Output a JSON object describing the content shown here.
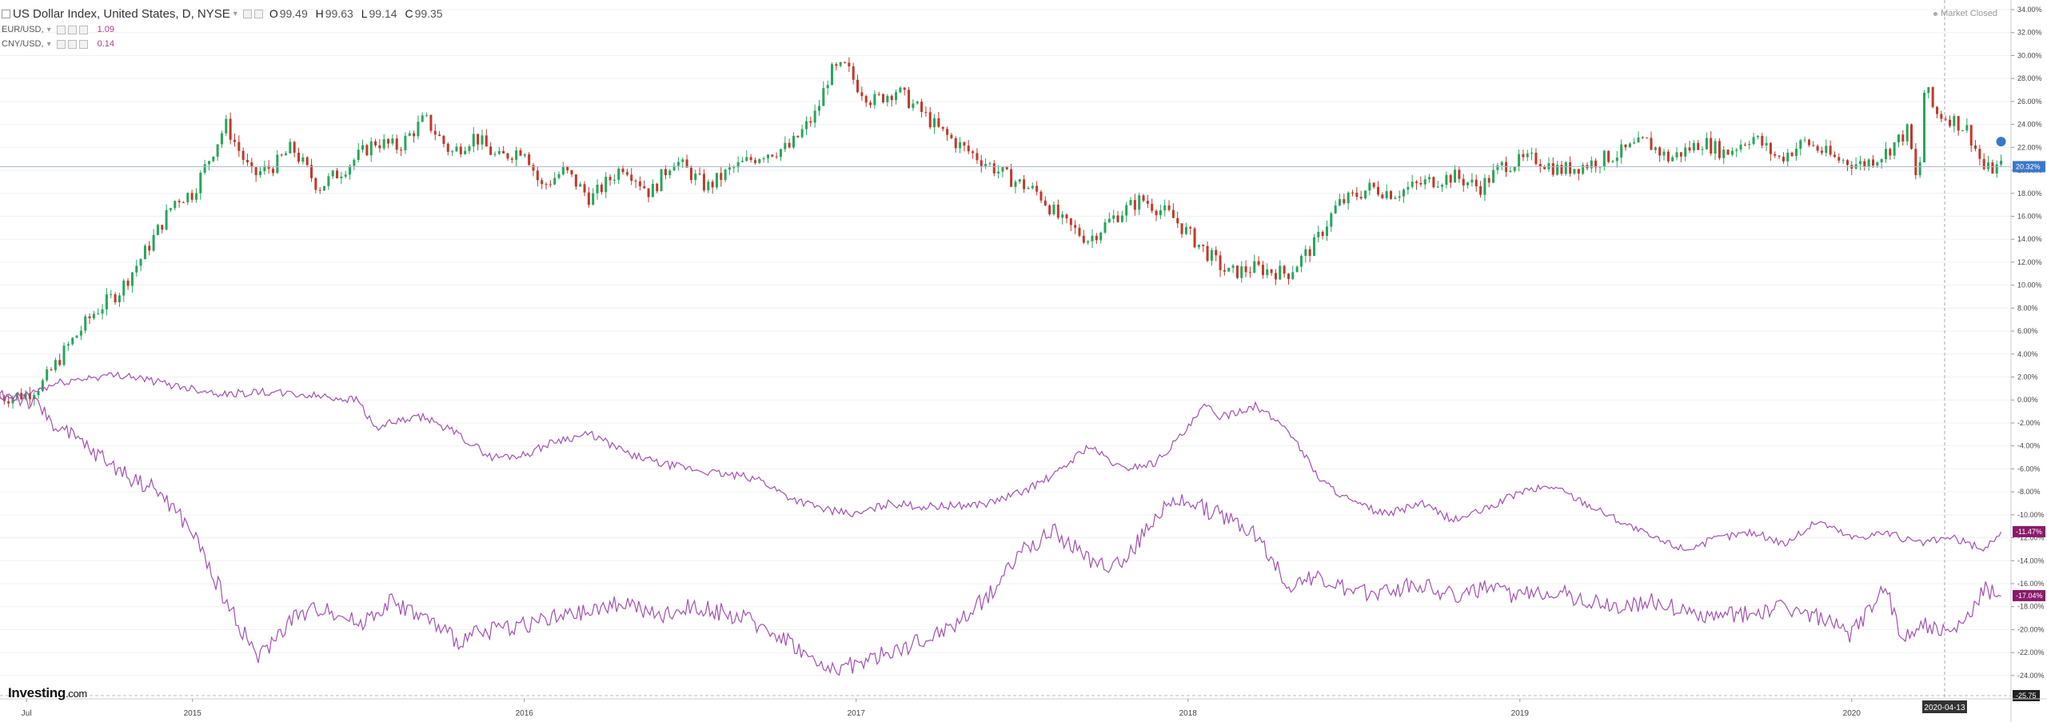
{
  "header": {
    "title": "US Dollar Index, United States, D, NYSE",
    "ohlc": {
      "o_label": "O",
      "o": "99.49",
      "h_label": "H",
      "h": "99.63",
      "l_label": "L",
      "l": "99.14",
      "c_label": "C",
      "c": "99.35"
    },
    "overlays": [
      {
        "name": "EUR/USD,",
        "value": "1.09"
      },
      {
        "name": "CNY/USD,",
        "value": "0.14"
      }
    ],
    "status": "Market Closed"
  },
  "branding": {
    "logo_main": "Investing",
    "logo_suffix": ".com"
  },
  "colors": {
    "bg": "#ffffff",
    "up": "#26a65b",
    "down": "#c0392b",
    "compare_line": "#a050b0",
    "grid": "#f0f0f0",
    "crosshair": "#aaaaaa",
    "price_label_usd": "#3b78c8",
    "price_label_compare": "#8b1a6b",
    "axis_label_dark": "#222222"
  },
  "chart_data": {
    "type": "line",
    "title": "US Dollar Index, United States, D, NYSE",
    "percent_scale": true,
    "ylim": [
      -25.75,
      34
    ],
    "y_ticks": [
      "34.00%",
      "32.00%",
      "30.00%",
      "28.00%",
      "26.00%",
      "24.00%",
      "22.00%",
      "20.00%",
      "18.00%",
      "16.00%",
      "14.00%",
      "12.00%",
      "10.00%",
      "8.00%",
      "6.00%",
      "4.00%",
      "2.00%",
      "0.00%",
      "-2.00%",
      "-4.00%",
      "-6.00%",
      "-8.00%",
      "-10.00%",
      "-12.00%",
      "-14.00%",
      "-16.00%",
      "-18.00%",
      "-20.00%",
      "-22.00%",
      "-24.00%"
    ],
    "y_tick_values": [
      34,
      32,
      30,
      28,
      26,
      24,
      22,
      20,
      18,
      16,
      14,
      12,
      10,
      8,
      6,
      4,
      2,
      0,
      -2,
      -4,
      -6,
      -8,
      -10,
      -12,
      -14,
      -16,
      -18,
      -20,
      -22,
      -24
    ],
    "x_ticks": [
      "Jul",
      "2015",
      "2016",
      "2017",
      "2018",
      "2019",
      "2020"
    ],
    "x_tick_values": [
      2014.5,
      2015.0,
      2016.0,
      2017.0,
      2018.0,
      2019.0,
      2020.0
    ],
    "xlim": [
      2014.42,
      2020.48
    ],
    "bottom_label": "-25.75",
    "crosshair_date": "2020-04-13",
    "crosshair_x": 2020.28,
    "last_labels": [
      {
        "series": "US Dollar Index",
        "text": "20.32%",
        "value": 20.32
      },
      {
        "series": "EUR/USD",
        "text": "-11.47%",
        "value": -11.47
      },
      {
        "series": "CNY/USD",
        "text": "-17.04%",
        "value": -17.04
      }
    ],
    "series": [
      {
        "name": "US Dollar Index",
        "style": "candles",
        "x": [
          2014.42,
          2014.5,
          2014.55,
          2014.62,
          2014.7,
          2014.78,
          2014.86,
          2014.95,
          2015.0,
          2015.1,
          2015.18,
          2015.25,
          2015.3,
          2015.38,
          2015.45,
          2015.55,
          2015.62,
          2015.7,
          2015.78,
          2015.85,
          2015.92,
          2016.0,
          2016.05,
          2016.12,
          2016.2,
          2016.3,
          2016.38,
          2016.45,
          2016.55,
          2016.62,
          2016.72,
          2016.8,
          2016.88,
          2016.92,
          2016.97,
          2017.0,
          2017.05,
          2017.12,
          2017.2,
          2017.25,
          2017.32,
          2017.4,
          2017.45,
          2017.55,
          2017.62,
          2017.7,
          2017.78,
          2017.86,
          2017.95,
          2018.0,
          2018.05,
          2018.12,
          2018.2,
          2018.3,
          2018.38,
          2018.45,
          2018.55,
          2018.62,
          2018.72,
          2018.8,
          2018.88,
          2018.95,
          2019.05,
          2019.12,
          2019.2,
          2019.3,
          2019.38,
          2019.45,
          2019.55,
          2019.62,
          2019.7,
          2019.78,
          2019.86,
          2019.95,
          2020.03,
          2020.1,
          2020.17,
          2020.2,
          2020.22,
          2020.25,
          2020.3,
          2020.35,
          2020.4,
          2020.45
        ],
        "y": [
          0.2,
          0.5,
          1.5,
          4.5,
          7.5,
          9.5,
          13.0,
          17.5,
          18.0,
          24.0,
          19.5,
          20.5,
          22.0,
          18.5,
          20.0,
          22.5,
          22.0,
          24.5,
          21.5,
          23.0,
          21.0,
          22.0,
          18.5,
          20.0,
          17.5,
          20.5,
          18.0,
          21.0,
          18.5,
          20.0,
          21.5,
          22.0,
          25.0,
          28.5,
          29.0,
          27.5,
          26.0,
          27.0,
          25.0,
          23.5,
          22.0,
          20.5,
          19.5,
          18.0,
          15.5,
          14.0,
          16.0,
          17.5,
          16.0,
          14.5,
          13.0,
          11.0,
          11.5,
          11.0,
          13.5,
          17.0,
          18.5,
          18.0,
          19.0,
          19.5,
          18.5,
          20.5,
          21.0,
          20.0,
          20.5,
          21.5,
          22.5,
          21.0,
          22.5,
          21.5,
          23.0,
          21.0,
          22.5,
          21.0,
          20.5,
          21.5,
          23.5,
          18.0,
          27.5,
          25.0,
          24.5,
          23.5,
          20.0,
          20.32
        ]
      },
      {
        "name": "EUR/USD",
        "style": "line",
        "x": [
          2014.42,
          2014.5,
          2014.6,
          2014.7,
          2014.8,
          2014.9,
          2015.0,
          2015.1,
          2015.2,
          2015.3,
          2015.4,
          2015.5,
          2015.55,
          2015.6,
          2015.7,
          2015.8,
          2015.9,
          2016.0,
          2016.1,
          2016.2,
          2016.3,
          2016.4,
          2016.5,
          2016.6,
          2016.7,
          2016.8,
          2016.9,
          2017.0,
          2017.1,
          2017.2,
          2017.3,
          2017.4,
          2017.5,
          2017.6,
          2017.7,
          2017.8,
          2017.9,
          2018.0,
          2018.05,
          2018.1,
          2018.2,
          2018.3,
          2018.4,
          2018.5,
          2018.6,
          2018.7,
          2018.8,
          2018.9,
          2019.0,
          2019.1,
          2019.2,
          2019.3,
          2019.4,
          2019.5,
          2019.6,
          2019.7,
          2019.8,
          2019.9,
          2020.0,
          2020.1,
          2020.2,
          2020.3,
          2020.4,
          2020.45
        ],
        "y": [
          0.0,
          0.5,
          1.5,
          2.0,
          2.2,
          1.5,
          1.0,
          0.5,
          0.7,
          0.5,
          0.3,
          0.0,
          -2.5,
          -2.0,
          -1.5,
          -3.0,
          -5.0,
          -4.8,
          -3.5,
          -3.0,
          -4.5,
          -5.5,
          -6.0,
          -6.5,
          -6.8,
          -8.5,
          -9.5,
          -10.0,
          -9.0,
          -9.3,
          -9.2,
          -9.0,
          -8.0,
          -6.5,
          -4.0,
          -6.0,
          -5.5,
          -2.5,
          -0.5,
          -1.5,
          -0.5,
          -2.5,
          -7.0,
          -9.0,
          -10.0,
          -9.0,
          -10.5,
          -9.5,
          -8.0,
          -7.5,
          -9.0,
          -10.5,
          -12.0,
          -13.0,
          -12.0,
          -11.5,
          -12.5,
          -10.5,
          -12.0,
          -11.5,
          -12.5,
          -12.0,
          -13.0,
          -11.47
        ]
      },
      {
        "name": "CNY/USD",
        "style": "line",
        "x": [
          2014.42,
          2014.5,
          2014.55,
          2014.6,
          2014.7,
          2014.8,
          2014.9,
          2015.0,
          2015.05,
          2015.1,
          2015.2,
          2015.3,
          2015.4,
          2015.5,
          2015.6,
          2015.7,
          2015.8,
          2015.9,
          2016.0,
          2016.1,
          2016.2,
          2016.3,
          2016.4,
          2016.5,
          2016.6,
          2016.7,
          2016.8,
          2016.9,
          2017.0,
          2017.1,
          2017.2,
          2017.3,
          2017.4,
          2017.5,
          2017.6,
          2017.7,
          2017.8,
          2017.9,
          2018.0,
          2018.05,
          2018.1,
          2018.2,
          2018.3,
          2018.4,
          2018.5,
          2018.6,
          2018.7,
          2018.8,
          2018.9,
          2019.0,
          2019.1,
          2019.2,
          2019.3,
          2019.4,
          2019.5,
          2019.6,
          2019.7,
          2019.8,
          2019.9,
          2020.0,
          2020.1,
          2020.15,
          2020.2,
          2020.25,
          2020.3,
          2020.35,
          2020.4,
          2020.45
        ],
        "y": [
          0.5,
          0.0,
          -1.0,
          -2.5,
          -4.5,
          -6.5,
          -8.0,
          -11.5,
          -14.5,
          -17.5,
          -22.5,
          -19.0,
          -18.0,
          -19.5,
          -17.5,
          -19.0,
          -21.0,
          -20.0,
          -19.5,
          -19.0,
          -18.5,
          -17.5,
          -19.0,
          -18.0,
          -18.5,
          -19.5,
          -21.0,
          -23.5,
          -23.0,
          -22.0,
          -21.0,
          -19.5,
          -17.0,
          -13.0,
          -11.5,
          -14.0,
          -14.5,
          -10.0,
          -8.5,
          -9.5,
          -10.0,
          -11.5,
          -16.0,
          -15.5,
          -17.0,
          -16.5,
          -16.0,
          -17.0,
          -16.5,
          -17.0,
          -16.5,
          -17.5,
          -18.0,
          -17.5,
          -18.5,
          -19.0,
          -18.5,
          -18.0,
          -19.0,
          -20.5,
          -16.0,
          -21.0,
          -19.5,
          -20.0,
          -20.5,
          -19.0,
          -16.5,
          -17.04
        ]
      }
    ]
  }
}
